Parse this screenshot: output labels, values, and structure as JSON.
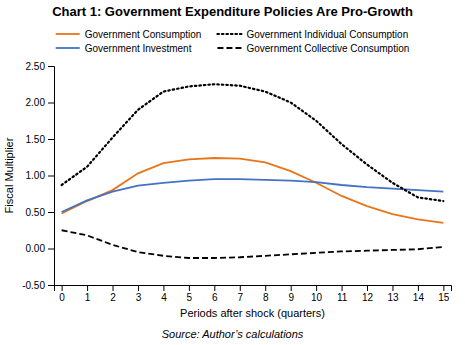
{
  "chart_data": {
    "type": "line",
    "title": "Chart 1: Government Expenditure Policies Are Pro-Growth",
    "x_label": "Periods after shock (quarters)",
    "y_label": "Fiscal Multiplier",
    "annotations": [
      "Source: Author’s calculations"
    ],
    "x": [
      0,
      1,
      2,
      3,
      4,
      5,
      6,
      7,
      8,
      9,
      10,
      11,
      12,
      13,
      14,
      15
    ],
    "xlim": [
      -0.3,
      15.3
    ],
    "ylim": [
      -0.5,
      2.5
    ],
    "xticks": [
      0,
      1,
      2,
      3,
      4,
      5,
      6,
      7,
      8,
      9,
      10,
      11,
      12,
      13,
      14,
      15
    ],
    "yticks": [
      {
        "value": -0.5,
        "label": "-0.50"
      },
      {
        "value": 0,
        "label": "0.00"
      },
      {
        "value": 0.5,
        "label": "0.50"
      },
      {
        "value": 1,
        "label": "1.00"
      },
      {
        "value": 1.5,
        "label": "1.50"
      },
      {
        "value": 2,
        "label": "2.00"
      },
      {
        "value": 2.5,
        "label": "2.50"
      }
    ],
    "grid": false,
    "legend": "top",
    "series": [
      {
        "name": "Government Consumption",
        "color": "#E8751A",
        "line_style": "solid",
        "values": [
          0.48,
          0.65,
          0.8,
          1.03,
          1.17,
          1.22,
          1.24,
          1.23,
          1.18,
          1.06,
          0.9,
          0.72,
          0.58,
          0.47,
          0.4,
          0.35
        ]
      },
      {
        "name": "Government Investment",
        "color": "#4472C4",
        "line_style": "solid",
        "values": [
          0.5,
          0.66,
          0.78,
          0.86,
          0.9,
          0.93,
          0.95,
          0.95,
          0.94,
          0.93,
          0.91,
          0.87,
          0.84,
          0.82,
          0.8,
          0.78
        ]
      },
      {
        "name": "Government Individual Consumption",
        "color": "#000000",
        "line_style": "dotted",
        "values": [
          0.87,
          1.12,
          1.52,
          1.9,
          2.15,
          2.22,
          2.25,
          2.23,
          2.15,
          2.0,
          1.75,
          1.43,
          1.15,
          0.9,
          0.7,
          0.65
        ]
      },
      {
        "name": "Government Collective Consumption",
        "color": "#000000",
        "line_style": "dashed",
        "values": [
          0.25,
          0.18,
          0.05,
          -0.05,
          -0.1,
          -0.13,
          -0.13,
          -0.12,
          -0.1,
          -0.08,
          -0.06,
          -0.04,
          -0.03,
          -0.02,
          -0.01,
          0.02
        ]
      }
    ]
  }
}
